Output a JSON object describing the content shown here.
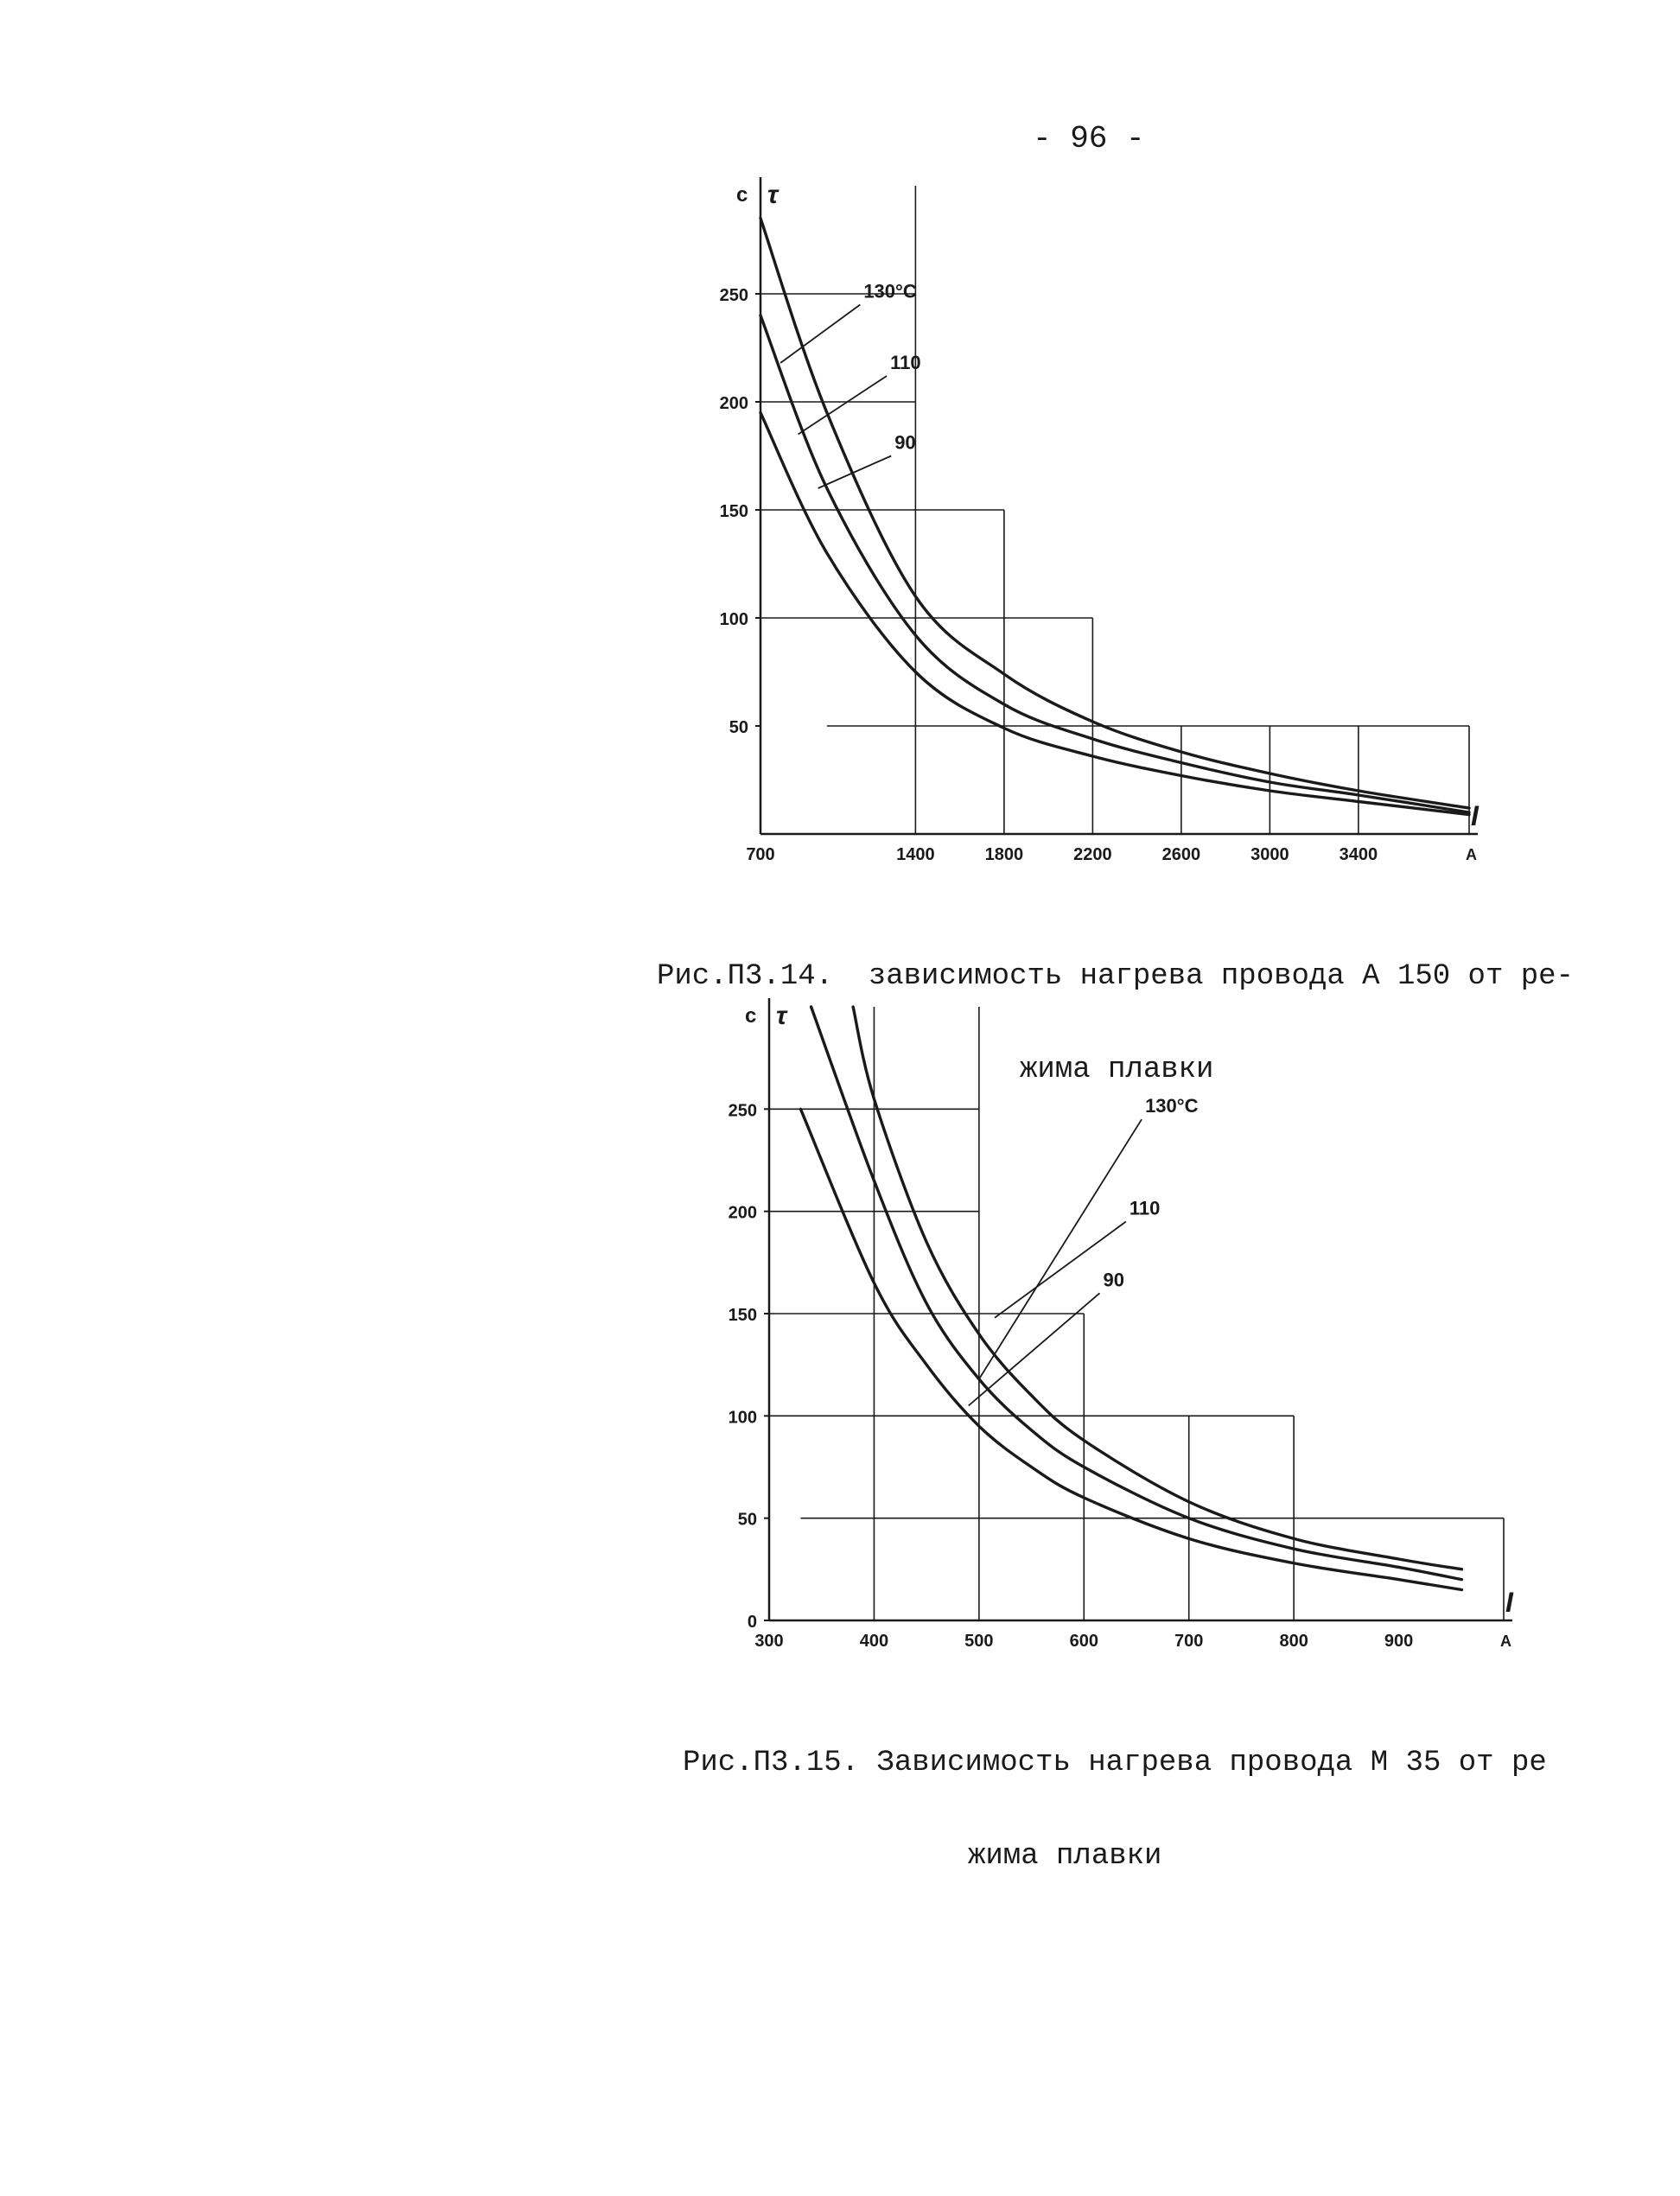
{
  "page": {
    "number": "- 96 -"
  },
  "figures": [
    {
      "caption_line1": "Рис.П3.14.  зависимость нагрева провода А 150 от ре-",
      "caption_line2": "жима плавки"
    },
    {
      "caption_line1": "Рис.П3.15. Зависимость нагрева провода М 35 от ре",
      "caption_line2": "жима плавки"
    }
  ],
  "chart_data": [
    {
      "type": "line",
      "title": "",
      "ylabel": "τ",
      "yunit": "с",
      "xlabel": "I",
      "xunit": "А",
      "xlim": [
        700,
        3900
      ],
      "ylim": [
        0,
        300
      ],
      "xticks": [
        700,
        1400,
        1800,
        2200,
        2600,
        3000,
        3400
      ],
      "xtick_labels": [
        "700",
        "1400",
        "1800",
        "2200",
        "2600",
        "3000",
        "3400"
      ],
      "yticks": [
        50,
        100,
        150,
        200,
        250
      ],
      "ytick_labels": [
        "50",
        "100",
        "150",
        "200",
        "250"
      ],
      "series": [
        {
          "name": "130°С",
          "x": [
            700,
            1000,
            1400,
            1800,
            2200,
            2600,
            3000,
            3400,
            3900
          ],
          "y": [
            285,
            195,
            110,
            74,
            52,
            38,
            28,
            20,
            12
          ]
        },
        {
          "name": "110",
          "x": [
            700,
            1000,
            1400,
            1800,
            2200,
            2600,
            3000,
            3400,
            3900
          ],
          "y": [
            240,
            160,
            92,
            60,
            44,
            33,
            24,
            18,
            10
          ]
        },
        {
          "name": "90",
          "x": [
            700,
            1000,
            1400,
            1800,
            2200,
            2600,
            3000,
            3400,
            3900
          ],
          "y": [
            195,
            130,
            75,
            49,
            36,
            27,
            20,
            15,
            9
          ]
        }
      ],
      "grid": "step"
    },
    {
      "type": "line",
      "title": "",
      "ylabel": "τ",
      "yunit": "с",
      "xlabel": "I",
      "xunit": "А",
      "xlim": [
        300,
        1000
      ],
      "ylim": [
        0,
        300
      ],
      "xticks": [
        300,
        400,
        500,
        600,
        700,
        800,
        900
      ],
      "xtick_labels": [
        "300",
        "400",
        "500",
        "600",
        "700",
        "800",
        "900"
      ],
      "yticks": [
        0,
        50,
        100,
        150,
        200,
        250
      ],
      "ytick_labels": [
        "0",
        "50",
        "100",
        "150",
        "200",
        "250"
      ],
      "series": [
        {
          "name": "130°С",
          "x": [
            380,
            400,
            450,
            500,
            550,
            600,
            700,
            800,
            900,
            960
          ],
          "y": [
            300,
            255,
            185,
            140,
            110,
            88,
            58,
            40,
            30,
            25
          ]
        },
        {
          "name": "110",
          "x": [
            340,
            400,
            450,
            500,
            550,
            600,
            700,
            800,
            900,
            960
          ],
          "y": [
            300,
            215,
            155,
            118,
            93,
            75,
            50,
            35,
            26,
            20
          ]
        },
        {
          "name": "90",
          "x": [
            330,
            400,
            450,
            500,
            550,
            600,
            700,
            800,
            900,
            960
          ],
          "y": [
            250,
            165,
            125,
            95,
            75,
            60,
            40,
            28,
            20,
            15
          ]
        }
      ],
      "grid": "step"
    }
  ]
}
